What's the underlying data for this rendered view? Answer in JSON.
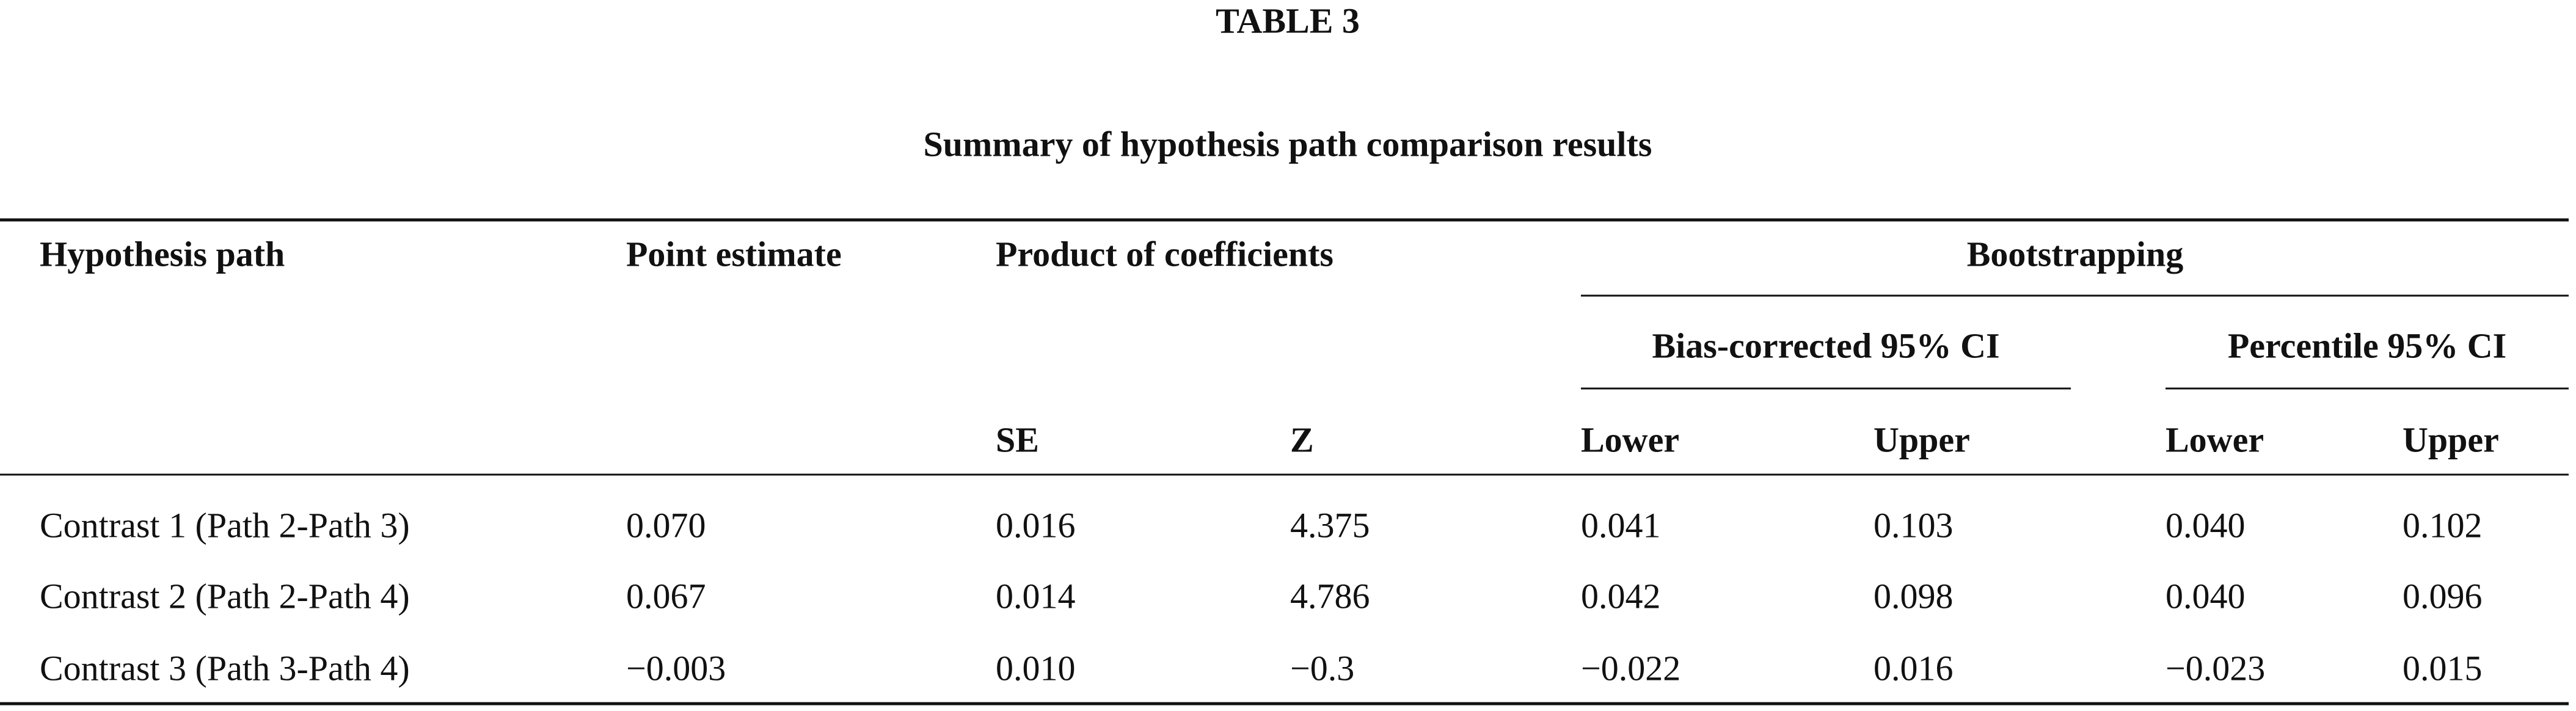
{
  "title": "TABLE 3",
  "subtitle": "Summary of hypothesis path comparison results",
  "table": {
    "header": {
      "hypothesis_path": "Hypothesis path",
      "point_estimate": "Point estimate",
      "product_of_coefficients": "Product of coefficients",
      "bootstrapping": "Bootstrapping",
      "bias_corrected": "Bias-corrected 95% CI",
      "percentile": "Percentile 95% CI",
      "columns": [
        "SE",
        "Z",
        "Lower",
        "Upper",
        "Lower",
        "Upper"
      ]
    },
    "rows": [
      [
        "Contrast 1 (Path 2-Path 3)",
        "0.070",
        "0.016",
        "4.375",
        "0.041",
        "0.103",
        "0.040",
        "0.102"
      ],
      [
        "Contrast 2 (Path 2-Path 4)",
        "0.067",
        "0.014",
        "4.786",
        "0.042",
        "0.098",
        "0.040",
        "0.096"
      ],
      [
        "Contrast 3 (Path 3-Path 4)",
        "−0.003",
        "0.010",
        "−0.3",
        "−0.022",
        "0.016",
        "−0.023",
        "0.015"
      ]
    ]
  }
}
